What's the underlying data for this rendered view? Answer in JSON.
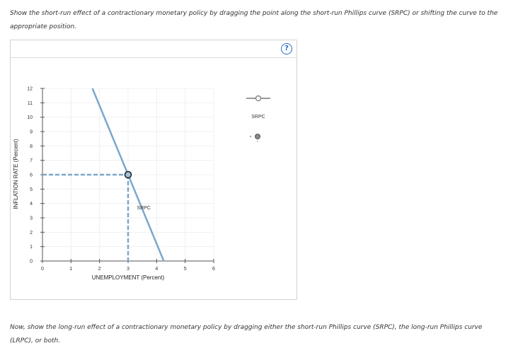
{
  "instructions": {
    "top": "Show the short-run effect of a contractionary monetary policy by dragging the point along the short-run Phillips curve (SRPC) or shifting the curve to the appropriate position.",
    "bottom": "Now, show the long-run effect of a contractionary monetary policy by dragging either the short-run Phillips curve (SRPC), the long-run Phillips curve (LRPC), or both."
  },
  "help": {
    "label": "?"
  },
  "palette": {
    "title": "SRPC",
    "curve_tool_icon": "line-with-handle-icon",
    "point_tool_icon": "point-icon"
  },
  "chart_data": {
    "type": "line",
    "xlabel": "UNEMPLOYMENT (Percent)",
    "ylabel": "INFLATION RATE (Percent)",
    "xlim": [
      0,
      6
    ],
    "ylim": [
      0,
      12
    ],
    "x_ticks": [
      "0",
      "1",
      "2",
      "3",
      "4",
      "5",
      "6"
    ],
    "y_ticks": [
      "0",
      "1",
      "2",
      "3",
      "4",
      "5",
      "6",
      "7",
      "8",
      "9",
      "10",
      "11",
      "12"
    ],
    "grid": true,
    "series": [
      {
        "name": "SRPC",
        "x": [
          1.75,
          4.25
        ],
        "y": [
          12,
          0
        ]
      }
    ],
    "point": {
      "x": 3,
      "y": 6
    },
    "curve_label": "SRPC",
    "colors": {
      "curve": "#7ba7cc",
      "dash": "#7ba7cc",
      "point_fill": "#9fc2df",
      "point_stroke": "#1a1a1a"
    }
  }
}
